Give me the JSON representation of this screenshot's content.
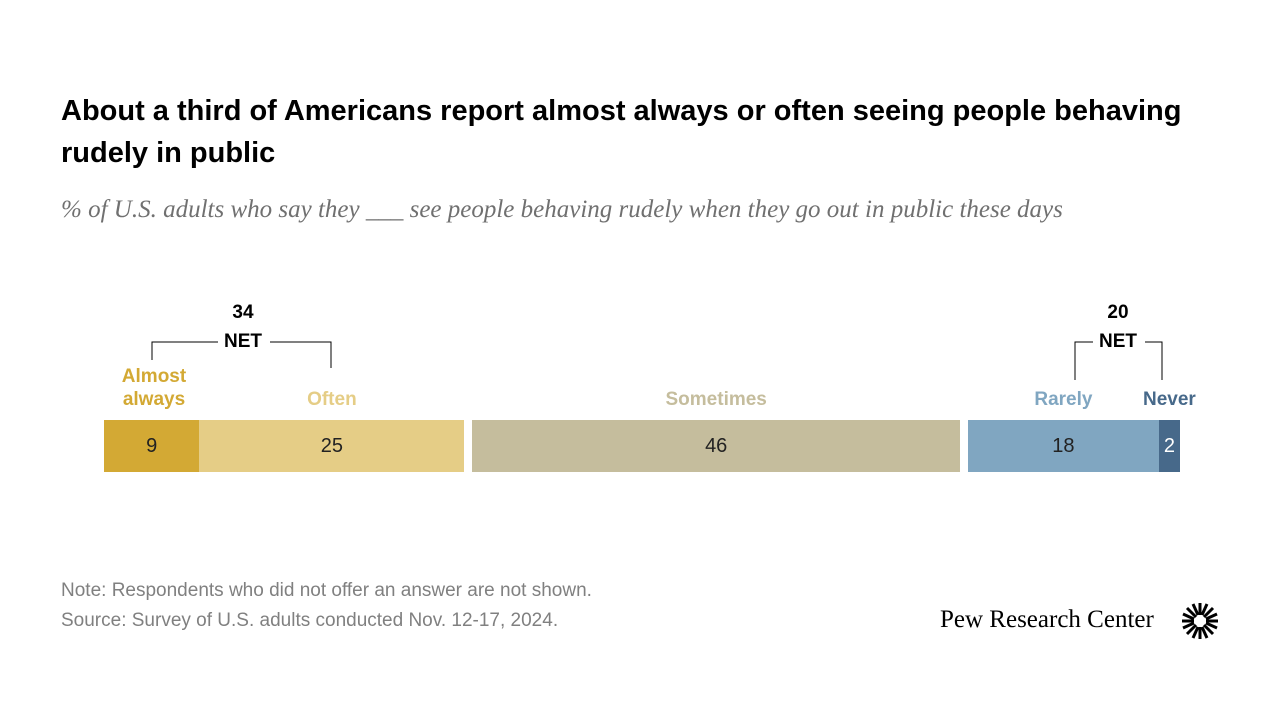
{
  "chart_data": {
    "type": "stacked-bar",
    "title": "About a third of Americans report almost always or often seeing people behaving rudely in public",
    "subtitle": "% of U.S. adults who say they ___ see people behaving rudely when they go out in public these days",
    "series": [
      {
        "name": "Almost always",
        "color": "#d3a934",
        "values": [
          9
        ]
      },
      {
        "name": "Often",
        "color": "#e5cd86",
        "values": [
          25
        ]
      },
      {
        "name": "Sometimes",
        "color": "#c5bd9d",
        "values": [
          46
        ]
      },
      {
        "name": "Rarely",
        "color": "#80a6c1",
        "values": [
          18
        ]
      },
      {
        "name": "Never",
        "color": "#47698a",
        "values": [
          2
        ]
      }
    ],
    "nets": [
      {
        "value": 34,
        "label": "NET"
      },
      {
        "value": 20,
        "label": "NET"
      }
    ],
    "note": "Note: Respondents who did not offer an answer are not shown.",
    "source": "Source: Survey of U.S. adults conducted Nov. 12-17, 2024.",
    "logo": "Pew Research Center"
  }
}
